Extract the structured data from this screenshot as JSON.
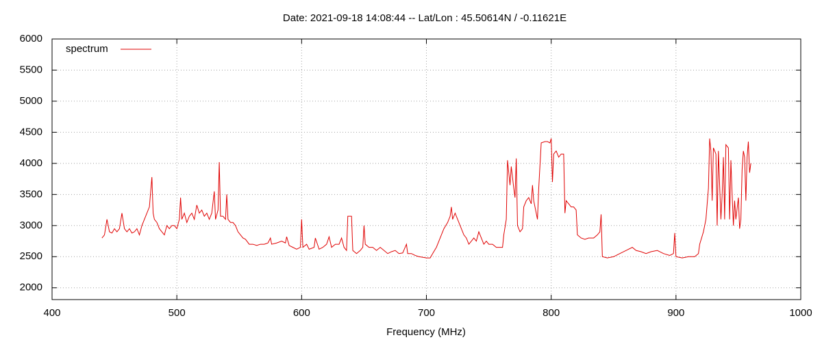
{
  "chart_data": {
    "type": "line",
    "title": "Date: 2021-09-18 14:08:44  --  Lat/Lon : 45.50614N / -0.11621E",
    "x_label": "Frequency (MHz)",
    "xlim": [
      400,
      1000
    ],
    "xticks": [
      400,
      500,
      600,
      700,
      800,
      900,
      1000
    ],
    "ylim": [
      1810,
      6000
    ],
    "yticks": [
      2000,
      2500,
      3000,
      3500,
      4000,
      4500,
      5000,
      5500,
      6000
    ],
    "grid": true,
    "legend": "top-left",
    "x": [
      440,
      442,
      444,
      446,
      448,
      450,
      452,
      454,
      456,
      458,
      460,
      462,
      464,
      466,
      468,
      470,
      472,
      474,
      476,
      478,
      480,
      481,
      482,
      484,
      486,
      488,
      490,
      492,
      494,
      496,
      498,
      500,
      502,
      503,
      504,
      506,
      508,
      510,
      512,
      514,
      516,
      518,
      520,
      522,
      524,
      526,
      528,
      530,
      531,
      533,
      534,
      535,
      537,
      539,
      540,
      541,
      543,
      545,
      547,
      549,
      551,
      553,
      555,
      558,
      561,
      564,
      567,
      570,
      573,
      575,
      576,
      580,
      584,
      587,
      588,
      590,
      593,
      596,
      599,
      600,
      601,
      604,
      606,
      610,
      611,
      614,
      617,
      620,
      622,
      624,
      627,
      630,
      632,
      634,
      636,
      637,
      640,
      641,
      644,
      647,
      649,
      650,
      651,
      654,
      657,
      660,
      663,
      666,
      669,
      672,
      675,
      678,
      681,
      684,
      685,
      688,
      691,
      694,
      697,
      700,
      703,
      705,
      708,
      711,
      714,
      717,
      719,
      720,
      721,
      723,
      725,
      728,
      730,
      732,
      734,
      736,
      738,
      740,
      742,
      744,
      746,
      748,
      750,
      753,
      756,
      759,
      761,
      762,
      764,
      765,
      766,
      767,
      768,
      770,
      771,
      772,
      773,
      775,
      777,
      778,
      780,
      782,
      784,
      785,
      786,
      788,
      789,
      790,
      792,
      795,
      797,
      799,
      800,
      801,
      802,
      804,
      806,
      808,
      810,
      811,
      812,
      814,
      816,
      818,
      820,
      821,
      824,
      827,
      830,
      834,
      837,
      839,
      840,
      841,
      845,
      850,
      855,
      860,
      865,
      868,
      872,
      876,
      880,
      885,
      890,
      895,
      898,
      899,
      900,
      905,
      910,
      915,
      918,
      919,
      922,
      924,
      926,
      927,
      928,
      929,
      930,
      932,
      933,
      934,
      936,
      937,
      938,
      939,
      940,
      942,
      943,
      944,
      945,
      946,
      947,
      948,
      950,
      951,
      952,
      953,
      954,
      955,
      956,
      957,
      958,
      959,
      960
    ],
    "series": [
      {
        "name": "spectrum",
        "color": "#e00000",
        "values": [
          2800,
          2850,
          3100,
          2900,
          2880,
          2950,
          2900,
          2950,
          3200,
          2950,
          2900,
          2950,
          2880,
          2900,
          2950,
          2850,
          3000,
          3100,
          3200,
          3300,
          3780,
          3200,
          3100,
          3050,
          2950,
          2900,
          2850,
          3000,
          2950,
          3000,
          3000,
          2950,
          3100,
          3450,
          3100,
          3200,
          3050,
          3150,
          3200,
          3100,
          3330,
          3200,
          3250,
          3150,
          3200,
          3100,
          3200,
          3550,
          3100,
          3250,
          4020,
          3150,
          3150,
          3100,
          3500,
          3100,
          3050,
          3050,
          3000,
          2900,
          2850,
          2800,
          2780,
          2700,
          2700,
          2680,
          2700,
          2700,
          2720,
          2800,
          2700,
          2720,
          2750,
          2720,
          2820,
          2680,
          2650,
          2620,
          2650,
          3100,
          2650,
          2700,
          2620,
          2650,
          2800,
          2620,
          2650,
          2700,
          2820,
          2650,
          2700,
          2700,
          2800,
          2650,
          2600,
          3150,
          3150,
          2600,
          2550,
          2600,
          2650,
          3000,
          2700,
          2650,
          2650,
          2600,
          2650,
          2600,
          2550,
          2580,
          2600,
          2550,
          2560,
          2700,
          2550,
          2550,
          2520,
          2500,
          2490,
          2480,
          2480,
          2550,
          2650,
          2800,
          2950,
          3050,
          3150,
          3300,
          3100,
          3200,
          3100,
          2950,
          2850,
          2800,
          2700,
          2750,
          2800,
          2750,
          2900,
          2800,
          2700,
          2750,
          2700,
          2700,
          2650,
          2650,
          2650,
          2850,
          3100,
          4050,
          3850,
          3650,
          3950,
          3600,
          3450,
          4080,
          3000,
          2900,
          2950,
          3300,
          3400,
          3450,
          3350,
          3650,
          3400,
          3200,
          3100,
          3600,
          4330,
          4350,
          4350,
          4330,
          4400,
          3700,
          4150,
          4200,
          4100,
          4150,
          4150,
          3200,
          3400,
          3350,
          3300,
          3300,
          3250,
          2850,
          2800,
          2780,
          2800,
          2800,
          2850,
          2900,
          3180,
          2500,
          2480,
          2500,
          2550,
          2600,
          2650,
          2600,
          2580,
          2550,
          2580,
          2600,
          2550,
          2520,
          2550,
          2880,
          2500,
          2480,
          2500,
          2500,
          2550,
          2700,
          2900,
          3100,
          3600,
          4400,
          4200,
          3400,
          4250,
          4150,
          3000,
          4200,
          3100,
          3500,
          4100,
          3100,
          4300,
          4250,
          3100,
          4050,
          3500,
          3000,
          3400,
          3100,
          3450,
          2950,
          3100,
          3900,
          4200,
          4100,
          3400,
          4100,
          4350,
          3850,
          4000
        ]
      }
    ]
  }
}
